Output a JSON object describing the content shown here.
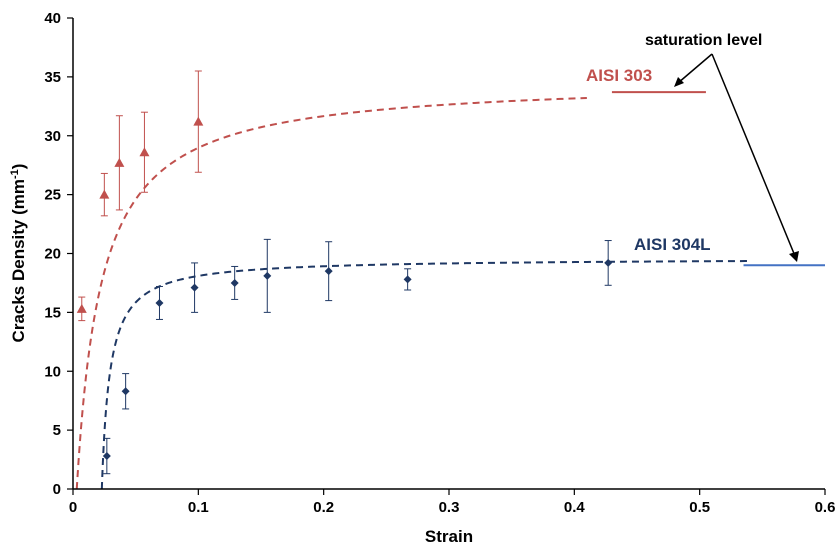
{
  "chart_data": {
    "type": "scatter",
    "title": "",
    "xlabel": "Strain",
    "ylabel": "Cracks Density (mm",
    "ylabel_sup": "-1",
    "ylabel_end": ")",
    "xlim": [
      0,
      0.6
    ],
    "ylim": [
      0,
      40
    ],
    "x_ticks": [
      "0",
      "0.1",
      "0.2",
      "0.3",
      "0.4",
      "0.5",
      "0.6"
    ],
    "y_ticks": [
      "0",
      "5",
      "10",
      "15",
      "20",
      "25",
      "30",
      "35",
      "40"
    ],
    "grid": false,
    "series": [
      {
        "name": "AISI 303",
        "color": "#c0504d",
        "marker": "triangle",
        "x": [
          0.007,
          0.025,
          0.037,
          0.057,
          0.1
        ],
        "y": [
          15.3,
          25.0,
          27.7,
          28.6,
          31.2
        ],
        "err": [
          1.0,
          1.8,
          4.0,
          3.4,
          4.3
        ],
        "fit": {
          "y_sat": 34.8,
          "b": 0.0195,
          "x0": 0.003,
          "x_end": 0.41
        },
        "saturation": {
          "y": 33.7,
          "x": [
            0.43,
            0.505
          ]
        }
      },
      {
        "name": "AISI 304L",
        "color": "#1f3864",
        "marker": "diamond",
        "x": [
          0.027,
          0.042,
          0.069,
          0.097,
          0.129,
          0.155,
          0.204,
          0.267,
          0.427
        ],
        "y": [
          2.8,
          8.3,
          15.8,
          17.1,
          17.5,
          18.1,
          18.5,
          17.8,
          19.2
        ],
        "err": [
          1.5,
          1.5,
          1.4,
          2.1,
          1.4,
          3.1,
          2.5,
          0.9,
          1.9
        ],
        "fit": {
          "y_sat": 19.6,
          "b": 0.0064,
          "x0": 0.023,
          "x_end": 0.54
        },
        "saturation": {
          "y": 19.0,
          "x": [
            0.535,
            0.6
          ]
        }
      }
    ],
    "annotations": {
      "saturation_text": "saturation level"
    }
  }
}
